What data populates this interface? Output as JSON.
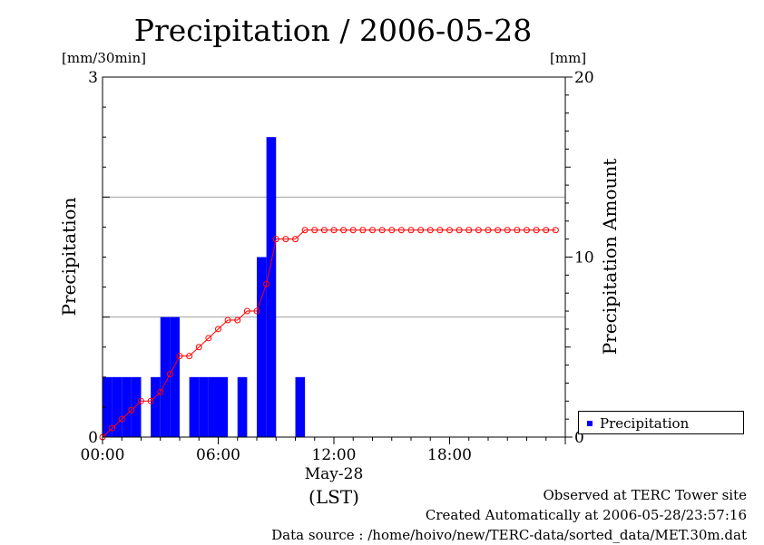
{
  "title": "Precipitation / 2006-05-28",
  "left_unit": "[mm/30min]",
  "right_unit": "[mm]",
  "left_axis_label": "Precipitation",
  "right_axis_label": "Precipitation Amount",
  "date_label": "May-28",
  "timezone_label": "(LST)",
  "footer": {
    "line1": "Observed at TERC Tower site",
    "line2": "Created Automatically at 2006-05-28/23:57:16",
    "line3": "Data source : /home/hoivo/new/TERC-data/sorted_data/MET.30m.dat"
  },
  "legend": {
    "label": "Precipitation",
    "position": "bottom-right, outside plot"
  },
  "colors": {
    "bars": "#0000ff",
    "line": "#ff0000",
    "grid": "#a0a0a0"
  },
  "chart_data": {
    "type": "bar",
    "grid": true,
    "x_ticks": [
      "00:00",
      "06:00",
      "12:00",
      "18:00"
    ],
    "xlim_hours": [
      0,
      24
    ],
    "y_left_ticks": [
      "0",
      "3"
    ],
    "ylim_left": [
      0,
      3
    ],
    "y_right_ticks": [
      "0",
      "10",
      "20"
    ],
    "ylim_right": [
      0,
      20
    ],
    "series": [
      {
        "name": "Precipitation",
        "type": "bar",
        "axis": "left",
        "x_hours": [
          0,
          0.5,
          1,
          1.5,
          2,
          2.5,
          3,
          3.5,
          4,
          4.5,
          5,
          5.5,
          6,
          6.5,
          7,
          7.5,
          8,
          8.5,
          9,
          9.5,
          10,
          10.5,
          11,
          11.5,
          12,
          12.5,
          13,
          13.5,
          14,
          14.5,
          15,
          15.5,
          16,
          16.5,
          17,
          17.5,
          18,
          18.5,
          19,
          19.5,
          20,
          20.5,
          21,
          21.5,
          22,
          22.5,
          23,
          23.5
        ],
        "values": [
          0.5,
          0.5,
          0.5,
          0.5,
          0,
          0.5,
          1,
          1,
          0,
          0.5,
          0.5,
          0.5,
          0.5,
          0,
          0.5,
          0,
          1.5,
          2.5,
          0,
          0,
          0.5,
          0,
          0,
          0,
          0,
          0,
          0,
          0,
          0,
          0,
          0,
          0,
          0,
          0,
          0,
          0,
          0,
          0,
          0,
          0,
          0,
          0,
          0,
          0,
          0,
          0,
          0,
          0
        ]
      },
      {
        "type": "line",
        "axis": "right",
        "x_hours": [
          0,
          0.5,
          1,
          1.5,
          2,
          2.5,
          3,
          3.5,
          4,
          4.5,
          5,
          5.5,
          6,
          6.5,
          7,
          7.5,
          8,
          8.5,
          9,
          9.5,
          10,
          10.5,
          11,
          11.5,
          12,
          12.5,
          13,
          13.5,
          14,
          14.5,
          15,
          15.5,
          16,
          16.5,
          17,
          17.5,
          18,
          18.5,
          19,
          19.5,
          20,
          20.5,
          21,
          21.5,
          22,
          22.5,
          23,
          23.5
        ],
        "values": [
          0,
          0.5,
          1,
          1.5,
          2,
          2,
          2.5,
          3.5,
          4.5,
          4.5,
          5,
          5.5,
          6,
          6.5,
          6.5,
          7,
          7,
          8.5,
          11,
          11,
          11,
          11.5,
          11.5,
          11.5,
          11.5,
          11.5,
          11.5,
          11.5,
          11.5,
          11.5,
          11.5,
          11.5,
          11.5,
          11.5,
          11.5,
          11.5,
          11.5,
          11.5,
          11.5,
          11.5,
          11.5,
          11.5,
          11.5,
          11.5,
          11.5,
          11.5,
          11.5,
          11.5
        ]
      }
    ]
  }
}
